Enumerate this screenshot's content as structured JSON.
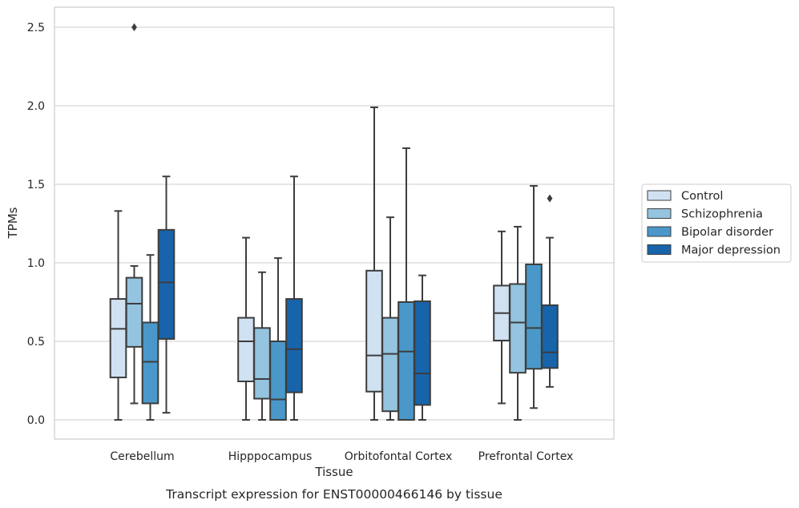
{
  "chart_data": {
    "type": "box",
    "xlabel": "Tissue",
    "ylabel": "TPMs",
    "caption": "Transcript expression for ENST00000466146 by tissue",
    "ylim": [
      -0.12,
      2.62
    ],
    "yticks": [
      "0.0",
      "0.5",
      "1.0",
      "1.5",
      "2.0",
      "2.5"
    ],
    "grid": "horizontal",
    "legend_position": "right",
    "categories": [
      "Cerebellum",
      "Hipppocampus",
      "Orbitofontal Cortex",
      "Prefrontal Cortex"
    ],
    "series": [
      {
        "name": "Control",
        "color": "#d0e1f2",
        "boxes": [
          {
            "whisker_low": 0.0,
            "q1": 0.27,
            "median": 0.58,
            "q3": 0.77,
            "whisker_high": 1.33,
            "outliers": []
          },
          {
            "whisker_low": 0.0,
            "q1": 0.245,
            "median": 0.5,
            "q3": 0.65,
            "whisker_high": 1.16,
            "outliers": []
          },
          {
            "whisker_low": 0.0,
            "q1": 0.18,
            "median": 0.41,
            "q3": 0.95,
            "whisker_high": 1.99,
            "outliers": []
          },
          {
            "whisker_low": 0.105,
            "q1": 0.505,
            "median": 0.68,
            "q3": 0.855,
            "whisker_high": 1.2,
            "outliers": []
          }
        ]
      },
      {
        "name": "Schizophrenia",
        "color": "#94c4df",
        "boxes": [
          {
            "whisker_low": 0.105,
            "q1": 0.465,
            "median": 0.74,
            "q3": 0.905,
            "whisker_high": 0.98,
            "outliers": [
              2.5
            ]
          },
          {
            "whisker_low": 0.0,
            "q1": 0.135,
            "median": 0.26,
            "q3": 0.585,
            "whisker_high": 0.94,
            "outliers": []
          },
          {
            "whisker_low": 0.0,
            "q1": 0.055,
            "median": 0.42,
            "q3": 0.65,
            "whisker_high": 1.29,
            "outliers": []
          },
          {
            "whisker_low": 0.0,
            "q1": 0.3,
            "median": 0.62,
            "q3": 0.865,
            "whisker_high": 1.23,
            "outliers": []
          }
        ]
      },
      {
        "name": "Bipolar disorder",
        "color": "#4a98c9",
        "boxes": [
          {
            "whisker_low": 0.0,
            "q1": 0.105,
            "median": 0.37,
            "q3": 0.62,
            "whisker_high": 1.05,
            "outliers": []
          },
          {
            "whisker_low": 0.0,
            "q1": 0.0,
            "median": 0.13,
            "q3": 0.5,
            "whisker_high": 1.03,
            "outliers": []
          },
          {
            "whisker_low": 0.0,
            "q1": 0.0,
            "median": 0.435,
            "q3": 0.75,
            "whisker_high": 1.73,
            "outliers": []
          },
          {
            "whisker_low": 0.075,
            "q1": 0.325,
            "median": 0.585,
            "q3": 0.99,
            "whisker_high": 1.49,
            "outliers": []
          }
        ]
      },
      {
        "name": "Major depression",
        "color": "#1764ab",
        "boxes": [
          {
            "whisker_low": 0.045,
            "q1": 0.515,
            "median": 0.875,
            "q3": 1.21,
            "whisker_high": 1.55,
            "outliers": []
          },
          {
            "whisker_low": 0.0,
            "q1": 0.175,
            "median": 0.45,
            "q3": 0.77,
            "whisker_high": 1.55,
            "outliers": []
          },
          {
            "whisker_low": 0.0,
            "q1": 0.095,
            "median": 0.295,
            "q3": 0.755,
            "whisker_high": 0.92,
            "outliers": []
          },
          {
            "whisker_low": 0.21,
            "q1": 0.33,
            "median": 0.43,
            "q3": 0.73,
            "whisker_high": 1.16,
            "outliers": [
              1.41
            ]
          }
        ]
      }
    ]
  }
}
